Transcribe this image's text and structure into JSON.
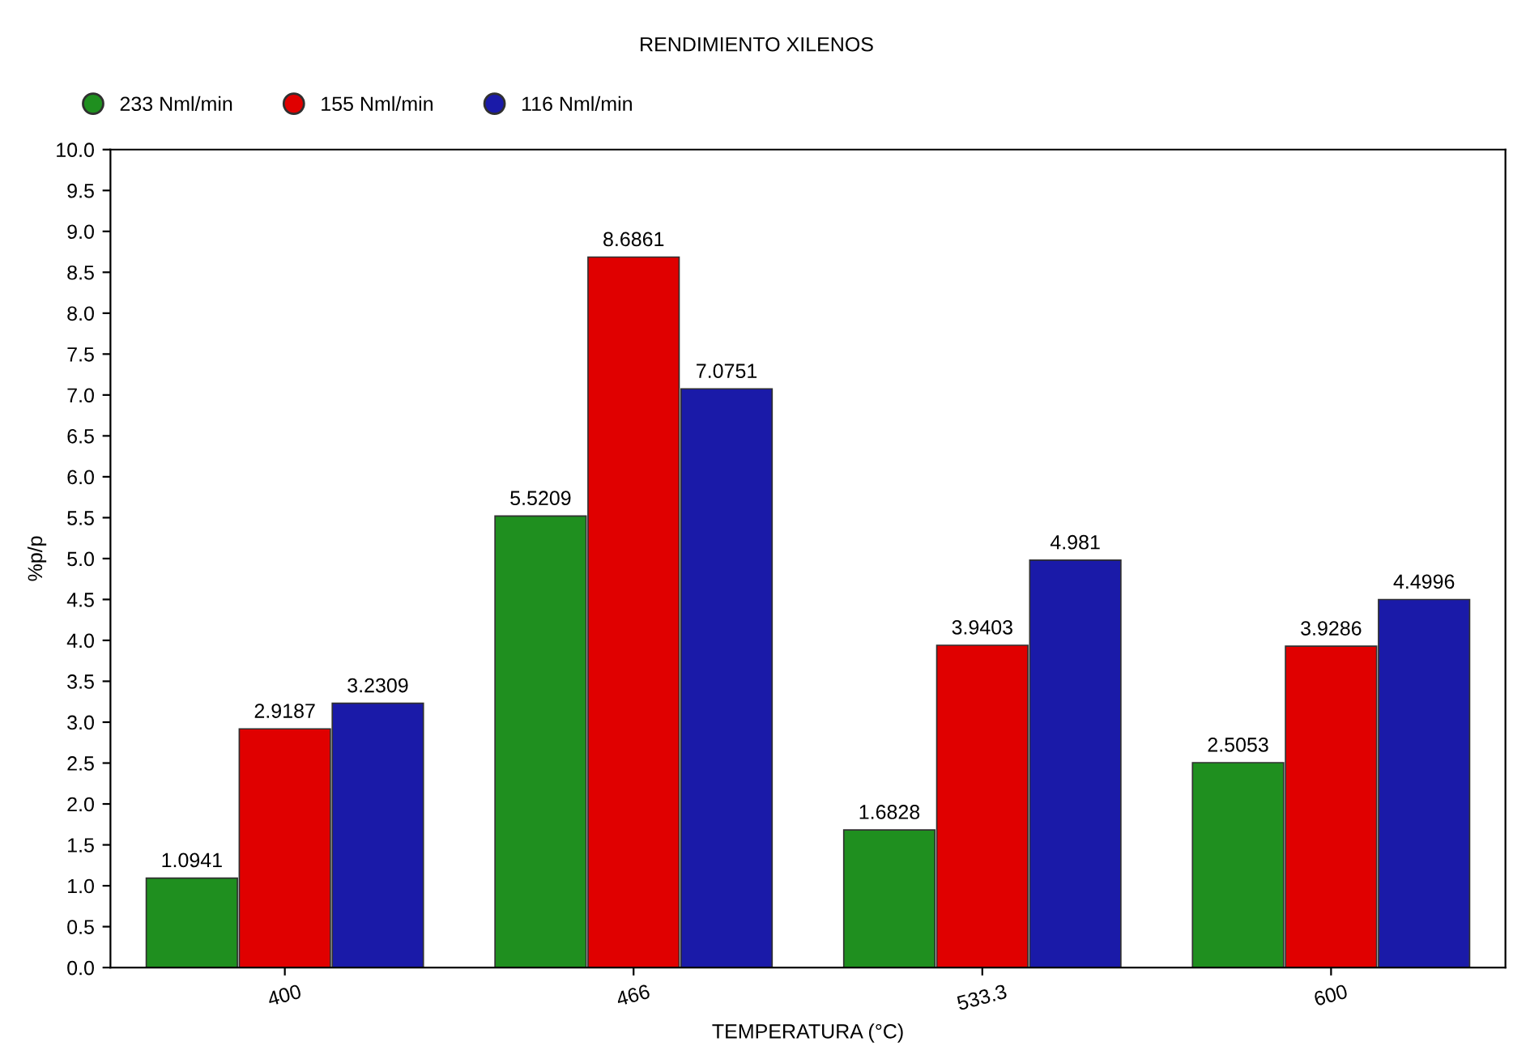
{
  "chart_data": {
    "type": "bar",
    "title": "RENDIMIENTO XILENOS",
    "xlabel": "TEMPERATURA (°C)",
    "ylabel": "%p/p",
    "categories": [
      "400",
      "466",
      "533.3",
      "600"
    ],
    "series": [
      {
        "name": "233 Nml/min",
        "color": "#1f8f1f",
        "values": [
          1.0941,
          5.5209,
          1.6828,
          2.5053
        ]
      },
      {
        "name": "155 Nml/min",
        "color": "#e00000",
        "values": [
          2.9187,
          8.6861,
          3.9403,
          3.9286
        ]
      },
      {
        "name": "116 Nml/min",
        "color": "#1a1aa8",
        "values": [
          3.2309,
          7.0751,
          4.981,
          4.4996
        ]
      }
    ],
    "ylim": [
      0,
      10
    ],
    "yticks": [
      {
        "value": 0,
        "label": "0.0"
      },
      {
        "value": 0.5,
        "label": "0.5"
      },
      {
        "value": 1,
        "label": "1.0"
      },
      {
        "value": 1.5,
        "label": "1.5"
      },
      {
        "value": 2,
        "label": "2.0"
      },
      {
        "value": 2.5,
        "label": "2.5"
      },
      {
        "value": 3,
        "label": "3.0"
      },
      {
        "value": 3.5,
        "label": "3.5"
      },
      {
        "value": 4,
        "label": "4.0"
      },
      {
        "value": 4.5,
        "label": "4.5"
      },
      {
        "value": 5,
        "label": "5.0"
      },
      {
        "value": 5.5,
        "label": "5.5"
      },
      {
        "value": 6,
        "label": "6.0"
      },
      {
        "value": 6.5,
        "label": "6.5"
      },
      {
        "value": 7,
        "label": "7.0"
      },
      {
        "value": 7.5,
        "label": "7.5"
      },
      {
        "value": 8,
        "label": "8.0"
      },
      {
        "value": 8.5,
        "label": "8.5"
      },
      {
        "value": 9,
        "label": "9.0"
      },
      {
        "value": 9.5,
        "label": "9.5"
      },
      {
        "value": 10,
        "label": "10.0"
      }
    ],
    "grid": false,
    "legend": "top left",
    "data_labels": true
  }
}
